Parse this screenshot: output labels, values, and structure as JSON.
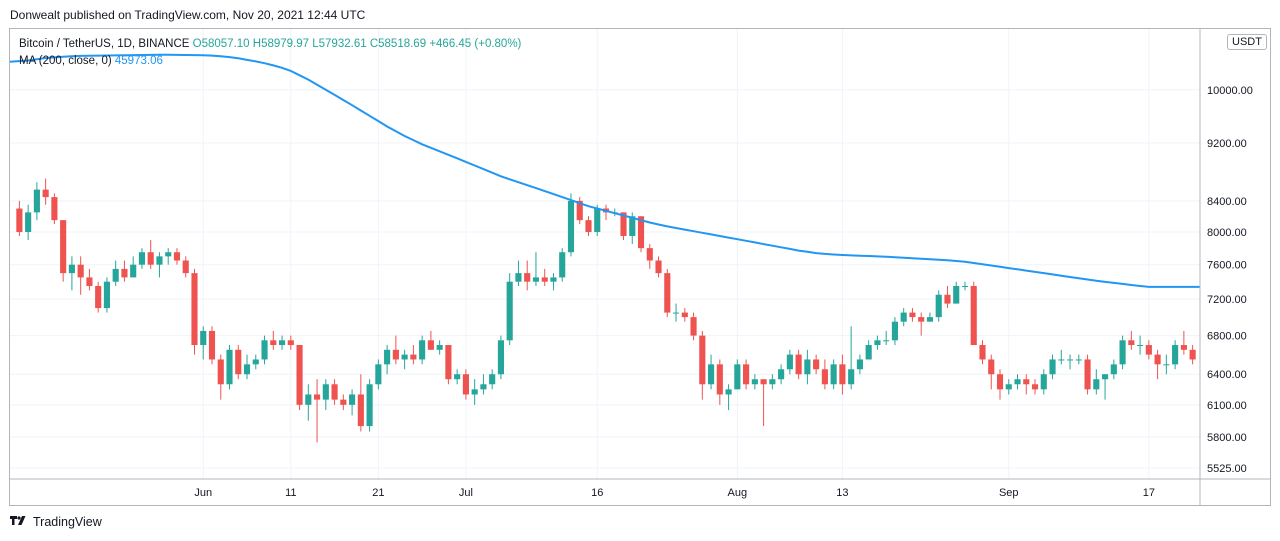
{
  "publisher": "Donwealt published on TradingView.com, Nov 20, 2021 12:44 UTC",
  "legend": {
    "symbol": "Bitcoin / TetherUS, 1D, BINANCE",
    "open": "O58057.10",
    "high": "H58979.97",
    "low": "L57932.61",
    "close": "C58518.69",
    "change": "+466.45 (+0.80%)",
    "ma_label": "MA (200, close, 0)",
    "ma_value": "45973.06"
  },
  "currency_badge": "USDT",
  "footer_brand": "TradingView",
  "colors": {
    "up": "#26a69a",
    "down": "#ef5350",
    "ma": "#2196f3",
    "grid": "#f0f3fa",
    "axis": "#b2b5be"
  },
  "chart_data": {
    "type": "candlestick",
    "y_scale": "log",
    "y_ticks": [
      5525,
      5800,
      6100,
      6400,
      6800,
      7200,
      7600,
      8000,
      8400,
      9200,
      10000
    ],
    "y_tick_labels": [
      "5525.00",
      "5800.00",
      "6100.00",
      "6400.00",
      "6800.00",
      "7200.00",
      "7600.00",
      "8000.00",
      "8400.00",
      "9200.00",
      "10000.00"
    ],
    "ylim": [
      5430,
      11000
    ],
    "x_ticks": [
      {
        "label": "Jun",
        "index": 21
      },
      {
        "label": "11",
        "index": 31
      },
      {
        "label": "21",
        "index": 41
      },
      {
        "label": "Jul",
        "index": 51
      },
      {
        "label": "16",
        "index": 66
      },
      {
        "label": "Aug",
        "index": 82
      },
      {
        "label": "13",
        "index": 94
      },
      {
        "label": "Sep",
        "index": 113
      },
      {
        "label": "17",
        "index": 129
      }
    ],
    "candles": [
      [
        8300,
        8400,
        7950,
        8000
      ],
      [
        8000,
        8350,
        7900,
        8250
      ],
      [
        8250,
        8650,
        8150,
        8550
      ],
      [
        8550,
        8700,
        8350,
        8450
      ],
      [
        8450,
        8500,
        8100,
        8150
      ],
      [
        8150,
        8150,
        7400,
        7500
      ],
      [
        7500,
        7700,
        7300,
        7600
      ],
      [
        7600,
        7700,
        7250,
        7450
      ],
      [
        7450,
        7550,
        7300,
        7350
      ],
      [
        7350,
        7400,
        7050,
        7100
      ],
      [
        7100,
        7450,
        7050,
        7400
      ],
      [
        7400,
        7650,
        7350,
        7550
      ],
      [
        7550,
        7650,
        7400,
        7450
      ],
      [
        7450,
        7700,
        7450,
        7600
      ],
      [
        7600,
        7800,
        7550,
        7750
      ],
      [
        7750,
        7900,
        7550,
        7600
      ],
      [
        7600,
        7750,
        7450,
        7700
      ],
      [
        7700,
        7800,
        7600,
        7750
      ],
      [
        7750,
        7800,
        7600,
        7650
      ],
      [
        7650,
        7700,
        7450,
        7500
      ],
      [
        7500,
        7550,
        6600,
        6700
      ],
      [
        6700,
        6900,
        6550,
        6850
      ],
      [
        6850,
        6900,
        6500,
        6550
      ],
      [
        6550,
        6600,
        6150,
        6300
      ],
      [
        6300,
        6700,
        6250,
        6650
      ],
      [
        6650,
        6700,
        6350,
        6400
      ],
      [
        6400,
        6600,
        6350,
        6500
      ],
      [
        6500,
        6600,
        6450,
        6550
      ],
      [
        6550,
        6800,
        6500,
        6750
      ],
      [
        6750,
        6850,
        6650,
        6700
      ],
      [
        6700,
        6800,
        6650,
        6750
      ],
      [
        6750,
        6800,
        6650,
        6700
      ],
      [
        6700,
        6700,
        6050,
        6100
      ],
      [
        6100,
        6300,
        5950,
        6200
      ],
      [
        6200,
        6350,
        5750,
        6150
      ],
      [
        6150,
        6350,
        6050,
        6300
      ],
      [
        6300,
        6350,
        6100,
        6150
      ],
      [
        6150,
        6200,
        6050,
        6100
      ],
      [
        6100,
        6250,
        6000,
        6200
      ],
      [
        6200,
        6400,
        5850,
        5900
      ],
      [
        5900,
        6350,
        5850,
        6300
      ],
      [
        6300,
        6550,
        6250,
        6500
      ],
      [
        6500,
        6700,
        6400,
        6650
      ],
      [
        6650,
        6800,
        6500,
        6550
      ],
      [
        6550,
        6650,
        6450,
        6600
      ],
      [
        6600,
        6700,
        6500,
        6550
      ],
      [
        6550,
        6800,
        6500,
        6750
      ],
      [
        6750,
        6850,
        6650,
        6650
      ],
      [
        6650,
        6750,
        6600,
        6700
      ],
      [
        6700,
        6700,
        6300,
        6350
      ],
      [
        6350,
        6450,
        6300,
        6400
      ],
      [
        6400,
        6450,
        6150,
        6200
      ],
      [
        6200,
        6350,
        6100,
        6250
      ],
      [
        6250,
        6400,
        6200,
        6300
      ],
      [
        6300,
        6450,
        6250,
        6400
      ],
      [
        6400,
        6800,
        6350,
        6750
      ],
      [
        6750,
        7500,
        6700,
        7400
      ],
      [
        7400,
        7650,
        7350,
        7500
      ],
      [
        7500,
        7650,
        7300,
        7400
      ],
      [
        7400,
        7750,
        7350,
        7450
      ],
      [
        7450,
        7550,
        7350,
        7400
      ],
      [
        7400,
        7500,
        7300,
        7450
      ],
      [
        7450,
        7800,
        7400,
        7750
      ],
      [
        7750,
        8500,
        7700,
        8400
      ],
      [
        8400,
        8450,
        8100,
        8150
      ],
      [
        8150,
        8200,
        7950,
        8000
      ],
      [
        8000,
        8350,
        7950,
        8300
      ],
      [
        8300,
        8350,
        8150,
        8250
      ],
      [
        8250,
        8300,
        8200,
        8250
      ],
      [
        8250,
        8250,
        7900,
        7950
      ],
      [
        7950,
        8250,
        7850,
        8200
      ],
      [
        8200,
        8200,
        7750,
        7800
      ],
      [
        7800,
        7850,
        7550,
        7650
      ],
      [
        7650,
        7700,
        7450,
        7500
      ],
      [
        7500,
        7550,
        7000,
        7050
      ],
      [
        7050,
        7150,
        6950,
        7050
      ],
      [
        7050,
        7100,
        6950,
        7000
      ],
      [
        7000,
        7050,
        6750,
        6800
      ],
      [
        6800,
        6850,
        6150,
        6300
      ],
      [
        6300,
        6600,
        6250,
        6500
      ],
      [
        6500,
        6550,
        6100,
        6200
      ],
      [
        6200,
        6300,
        6050,
        6250
      ],
      [
        6250,
        6550,
        6250,
        6500
      ],
      [
        6500,
        6550,
        6250,
        6300
      ],
      [
        6300,
        6400,
        6250,
        6350
      ],
      [
        6350,
        6350,
        5900,
        6300
      ],
      [
        6300,
        6400,
        6250,
        6350
      ],
      [
        6350,
        6500,
        6300,
        6450
      ],
      [
        6450,
        6650,
        6400,
        6600
      ],
      [
        6600,
        6650,
        6350,
        6400
      ],
      [
        6400,
        6650,
        6300,
        6550
      ],
      [
        6550,
        6600,
        6400,
        6450
      ],
      [
        6450,
        6550,
        6250,
        6300
      ],
      [
        6300,
        6550,
        6250,
        6500
      ],
      [
        6500,
        6600,
        6200,
        6300
      ],
      [
        6300,
        6900,
        6250,
        6450
      ],
      [
        6450,
        6600,
        6400,
        6550
      ],
      [
        6550,
        6750,
        6550,
        6700
      ],
      [
        6700,
        6800,
        6650,
        6750
      ],
      [
        6750,
        6850,
        6700,
        6750
      ],
      [
        6750,
        7000,
        6700,
        6950
      ],
      [
        6950,
        7100,
        6900,
        7050
      ],
      [
        7050,
        7100,
        6950,
        7000
      ],
      [
        7000,
        7050,
        6800,
        6950
      ],
      [
        6950,
        7050,
        6950,
        7000
      ],
      [
        7000,
        7300,
        6950,
        7250
      ],
      [
        7250,
        7350,
        7100,
        7150
      ],
      [
        7150,
        7400,
        7150,
        7350
      ],
      [
        7350,
        7400,
        7300,
        7350
      ],
      [
        7350,
        7400,
        6700,
        6700
      ],
      [
        6700,
        6750,
        6500,
        6550
      ],
      [
        6550,
        6600,
        6250,
        6400
      ],
      [
        6400,
        6450,
        6150,
        6250
      ],
      [
        6250,
        6350,
        6200,
        6300
      ],
      [
        6300,
        6400,
        6250,
        6350
      ],
      [
        6350,
        6400,
        6200,
        6300
      ],
      [
        6300,
        6350,
        6200,
        6250
      ],
      [
        6250,
        6450,
        6200,
        6400
      ],
      [
        6400,
        6600,
        6350,
        6550
      ],
      [
        6550,
        6650,
        6500,
        6550
      ],
      [
        6550,
        6600,
        6450,
        6550
      ],
      [
        6550,
        6600,
        6500,
        6550
      ],
      [
        6550,
        6600,
        6200,
        6250
      ],
      [
        6250,
        6450,
        6200,
        6350
      ],
      [
        6350,
        6400,
        6150,
        6400
      ],
      [
        6400,
        6550,
        6350,
        6500
      ],
      [
        6500,
        6800,
        6450,
        6750
      ],
      [
        6750,
        6850,
        6650,
        6700
      ],
      [
        6700,
        6800,
        6600,
        6700
      ],
      [
        6700,
        6750,
        6550,
        6600
      ],
      [
        6600,
        6650,
        6350,
        6500
      ],
      [
        6500,
        6600,
        6400,
        6500
      ],
      [
        6500,
        6750,
        6450,
        6700
      ],
      [
        6700,
        6850,
        6600,
        6650
      ],
      [
        6650,
        6700,
        6500,
        6550
      ]
    ],
    "ma": [
      10450,
      10470,
      10490,
      10510,
      10520,
      10530,
      10540,
      10545,
      10548,
      10550,
      10552,
      10554,
      10556,
      10558,
      10560,
      10562,
      10563,
      10563,
      10562,
      10560,
      10558,
      10555,
      10550,
      10540,
      10525,
      10505,
      10480,
      10455,
      10425,
      10390,
      10350,
      10300,
      10230,
      10160,
      10080,
      10000,
      9920,
      9840,
      9760,
      9680,
      9600,
      9520,
      9440,
      9370,
      9300,
      9240,
      9180,
      9130,
      9080,
      9030,
      8980,
      8930,
      8880,
      8830,
      8780,
      8730,
      8690,
      8650,
      8610,
      8570,
      8530,
      8490,
      8450,
      8410,
      8370,
      8330,
      8300,
      8270,
      8240,
      8210,
      8180,
      8150,
      8120,
      8095,
      8070,
      8050,
      8030,
      8010,
      7990,
      7970,
      7950,
      7930,
      7910,
      7890,
      7870,
      7850,
      7830,
      7810,
      7790,
      7770,
      7755,
      7740,
      7730,
      7722,
      7716,
      7712,
      7708,
      7704,
      7700,
      7696,
      7690,
      7684,
      7678,
      7672,
      7666,
      7660,
      7652,
      7644,
      7636,
      7620,
      7605,
      7590,
      7575,
      7560,
      7545,
      7530,
      7515,
      7500,
      7485,
      7470,
      7455,
      7440,
      7425,
      7410,
      7398,
      7386,
      7374,
      7362,
      7350,
      7340
    ]
  }
}
